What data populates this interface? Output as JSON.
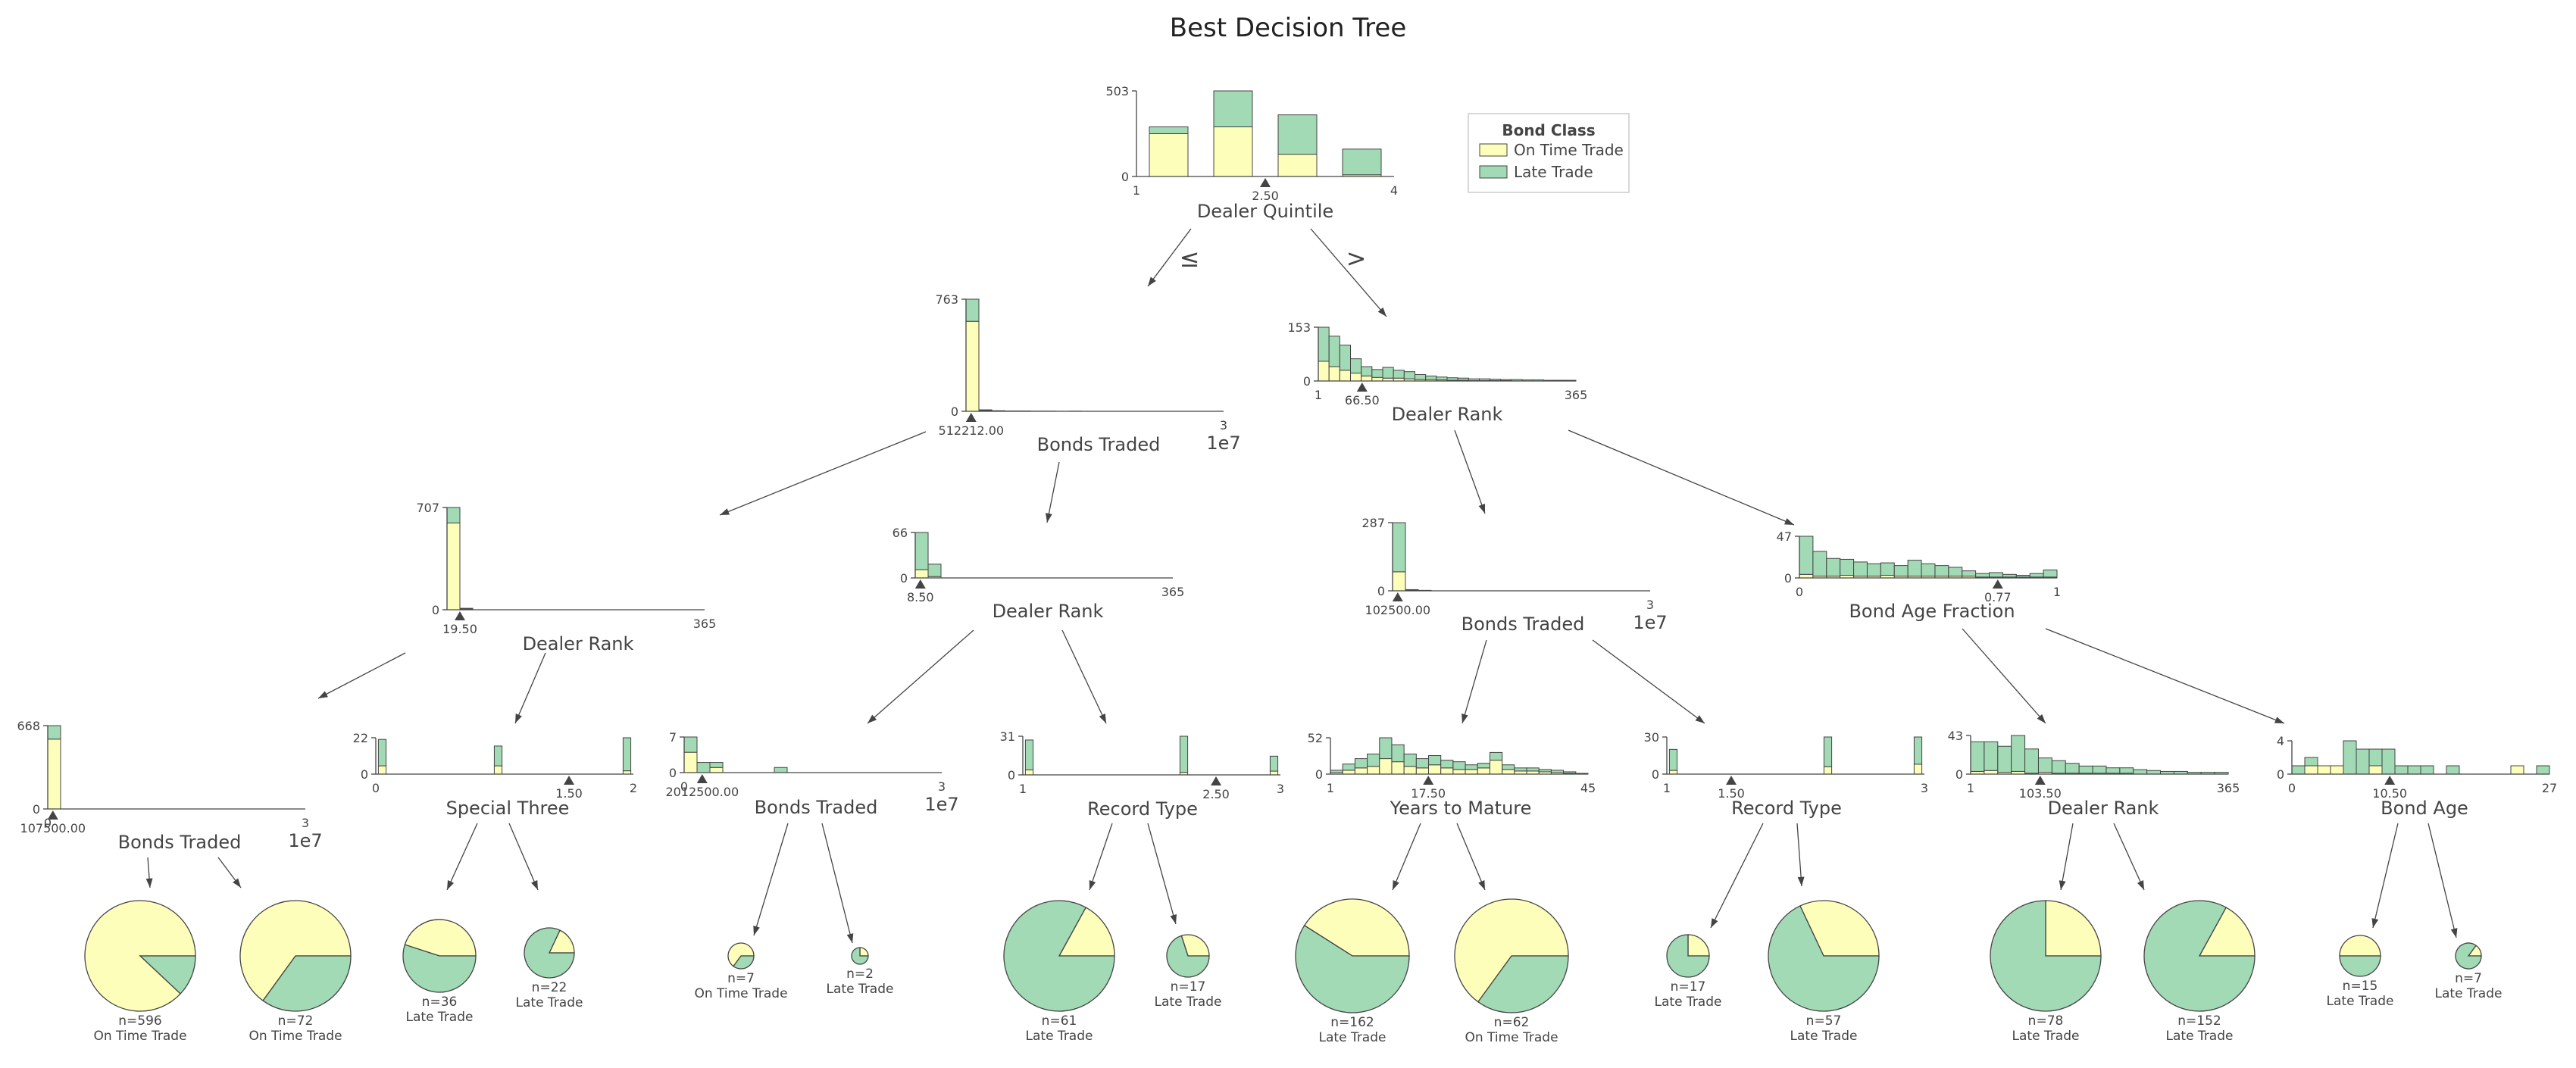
{
  "title": "Best Decision Tree",
  "colors": {
    "class_a": "#fefebb",
    "class_b": "#a1dab4",
    "stroke": "#444444"
  },
  "legend": {
    "title": "Bond Class",
    "items": [
      "On Time Trade",
      "Late Trade"
    ]
  },
  "edge_labels": {
    "left": "≤",
    "right": ">"
  },
  "nodes": [
    {
      "id": "root",
      "feature": "Dealer Quintile",
      "threshold": "2.50",
      "xmin": "1",
      "xmax": "4",
      "ymax": "503",
      "bars": [
        [
          250,
          40
        ],
        [
          290,
          210
        ],
        [
          130,
          230
        ],
        [
          10,
          150
        ]
      ]
    },
    {
      "id": "L",
      "feature": "Bonds Traded",
      "threshold": "512212.00",
      "xmin": "",
      "xmax": "3",
      "exp": "1e7",
      "ymax": "763",
      "bars": [
        [
          610,
          150
        ],
        [
          6,
          4
        ],
        [
          2,
          2
        ],
        [
          1,
          1
        ],
        [
          1,
          1
        ],
        [
          0,
          1
        ],
        [
          0,
          1
        ],
        [
          0,
          0
        ],
        [
          0,
          1
        ],
        [
          0,
          0
        ],
        [
          0,
          0
        ],
        [
          0,
          0
        ],
        [
          0,
          0
        ],
        [
          0,
          0
        ],
        [
          0,
          0
        ],
        [
          0,
          0
        ],
        [
          0,
          0
        ],
        [
          0,
          0
        ],
        [
          0,
          0
        ],
        [
          0,
          0
        ]
      ]
    },
    {
      "id": "R",
      "feature": "Dealer Rank",
      "threshold": "66.50",
      "xmin": "1",
      "xmax": "365",
      "ymax": "153",
      "bars": [
        [
          55,
          95
        ],
        [
          40,
          85
        ],
        [
          30,
          70
        ],
        [
          22,
          40
        ],
        [
          14,
          26
        ],
        [
          10,
          22
        ],
        [
          8,
          30
        ],
        [
          8,
          22
        ],
        [
          6,
          20
        ],
        [
          4,
          14
        ],
        [
          4,
          10
        ],
        [
          3,
          8
        ],
        [
          2,
          7
        ],
        [
          2,
          6
        ],
        [
          1,
          5
        ],
        [
          1,
          5
        ],
        [
          1,
          4
        ],
        [
          1,
          3
        ],
        [
          0,
          4
        ],
        [
          0,
          3
        ],
        [
          0,
          3
        ],
        [
          0,
          2
        ],
        [
          0,
          2
        ],
        [
          0,
          2
        ]
      ]
    },
    {
      "id": "LL",
      "feature": "Dealer Rank",
      "threshold": "19.50",
      "xmin": "",
      "xmax": "365",
      "ymax": "707",
      "bars": [
        [
          600,
          107
        ],
        [
          6,
          4
        ],
        [
          0,
          0
        ],
        [
          0,
          0
        ],
        [
          0,
          0
        ],
        [
          0,
          0
        ],
        [
          0,
          0
        ],
        [
          0,
          0
        ],
        [
          0,
          0
        ],
        [
          0,
          0
        ],
        [
          0,
          0
        ],
        [
          0,
          0
        ],
        [
          0,
          0
        ],
        [
          0,
          0
        ],
        [
          0,
          0
        ],
        [
          0,
          0
        ],
        [
          0,
          0
        ],
        [
          0,
          0
        ],
        [
          0,
          0
        ],
        [
          0,
          0
        ]
      ]
    },
    {
      "id": "LR",
      "feature": "Dealer Rank",
      "threshold": "8.50",
      "xmin": "",
      "xmax": "365",
      "ymax": "66",
      "bars": [
        [
          12,
          54
        ],
        [
          2,
          18
        ],
        [
          0,
          0
        ],
        [
          0,
          0
        ],
        [
          0,
          0
        ],
        [
          0,
          0
        ],
        [
          0,
          0
        ],
        [
          0,
          0
        ],
        [
          0,
          0
        ],
        [
          0,
          0
        ],
        [
          0,
          0
        ],
        [
          0,
          0
        ],
        [
          0,
          0
        ],
        [
          0,
          0
        ],
        [
          0,
          0
        ],
        [
          0,
          0
        ],
        [
          0,
          0
        ],
        [
          0,
          0
        ],
        [
          0,
          0
        ],
        [
          0,
          0
        ]
      ]
    },
    {
      "id": "RL",
      "feature": "Bonds Traded",
      "threshold": "102500.00",
      "xmin": "",
      "xmax": "3",
      "exp": "1e7",
      "ymax": "287",
      "bars": [
        [
          80,
          207
        ],
        [
          2,
          3
        ],
        [
          1,
          1
        ],
        [
          0,
          0
        ],
        [
          0,
          0
        ],
        [
          0,
          0
        ],
        [
          0,
          0
        ],
        [
          0,
          0
        ],
        [
          0,
          0
        ],
        [
          0,
          0
        ],
        [
          0,
          0
        ],
        [
          0,
          0
        ],
        [
          0,
          0
        ],
        [
          0,
          0
        ],
        [
          0,
          0
        ],
        [
          0,
          0
        ],
        [
          0,
          0
        ],
        [
          0,
          0
        ],
        [
          0,
          0
        ],
        [
          0,
          0
        ]
      ]
    },
    {
      "id": "RR",
      "feature": "Bond Age Fraction",
      "threshold": "0.77",
      "xmin": "0",
      "xmax": "1",
      "ymax": "47",
      "bars": [
        [
          4,
          43
        ],
        [
          2,
          28
        ],
        [
          2,
          20
        ],
        [
          3,
          18
        ],
        [
          2,
          16
        ],
        [
          2,
          14
        ],
        [
          3,
          14
        ],
        [
          2,
          12
        ],
        [
          2,
          18
        ],
        [
          2,
          14
        ],
        [
          2,
          12
        ],
        [
          2,
          10
        ],
        [
          2,
          6
        ],
        [
          1,
          4
        ],
        [
          1,
          5
        ],
        [
          1,
          3
        ],
        [
          1,
          2
        ],
        [
          1,
          4
        ],
        [
          1,
          8
        ]
      ]
    },
    {
      "id": "LLL",
      "feature": "Bonds Traded",
      "threshold": "107500.00",
      "xmin": "0",
      "xmax": "3",
      "exp": "1e7",
      "ymax": "668",
      "bars": [
        [
          560,
          108
        ],
        [
          0,
          0
        ],
        [
          0,
          0
        ],
        [
          0,
          0
        ],
        [
          0,
          0
        ],
        [
          0,
          0
        ],
        [
          0,
          0
        ],
        [
          0,
          0
        ],
        [
          0,
          0
        ],
        [
          0,
          0
        ],
        [
          0,
          0
        ],
        [
          0,
          0
        ],
        [
          0,
          0
        ],
        [
          0,
          0
        ],
        [
          0,
          0
        ],
        [
          0,
          0
        ],
        [
          0,
          0
        ],
        [
          0,
          0
        ],
        [
          0,
          0
        ],
        [
          0,
          0
        ]
      ]
    },
    {
      "id": "LLR",
      "feature": "Special Three",
      "threshold": "1.50",
      "xmin": "0",
      "xmax": "2",
      "ymax": "22",
      "bars": [
        [
          5,
          16
        ],
        [
          0,
          0
        ],
        [
          0,
          0
        ],
        [
          0,
          0
        ],
        [
          0,
          0
        ],
        [
          0,
          0
        ],
        [
          0,
          0
        ],
        [
          0,
          0
        ],
        [
          0,
          0
        ],
        [
          5,
          12
        ],
        [
          0,
          0
        ],
        [
          0,
          0
        ],
        [
          0,
          0
        ],
        [
          0,
          0
        ],
        [
          0,
          0
        ],
        [
          0,
          0
        ],
        [
          0,
          0
        ],
        [
          0,
          0
        ],
        [
          0,
          0
        ],
        [
          2,
          20
        ]
      ]
    },
    {
      "id": "LRL",
      "feature": "Bonds Traded",
      "threshold": "2012500.00",
      "xmin": "0",
      "xmax": "3",
      "exp": "1e7",
      "ymax": "7",
      "bars": [
        [
          4,
          3
        ],
        [
          0,
          2
        ],
        [
          1,
          1
        ],
        [
          0,
          0
        ],
        [
          0,
          0
        ],
        [
          0,
          0
        ],
        [
          0,
          0
        ],
        [
          0,
          1
        ],
        [
          0,
          0
        ],
        [
          0,
          0
        ],
        [
          0,
          0
        ],
        [
          0,
          0
        ],
        [
          0,
          0
        ],
        [
          0,
          0
        ],
        [
          0,
          0
        ],
        [
          0,
          0
        ],
        [
          0,
          0
        ],
        [
          0,
          0
        ],
        [
          0,
          0
        ],
        [
          0,
          0
        ]
      ]
    },
    {
      "id": "LRR",
      "feature": "Record Type",
      "threshold": "2.50",
      "xmin": "1",
      "xmax": "3",
      "ymax": "31",
      "bars": [
        [
          4,
          24
        ],
        [
          0,
          0
        ],
        [
          0,
          0
        ],
        [
          0,
          0
        ],
        [
          0,
          0
        ],
        [
          0,
          0
        ],
        [
          0,
          0
        ],
        [
          0,
          0
        ],
        [
          0,
          0
        ],
        [
          0,
          0
        ],
        [
          0,
          0
        ],
        [
          0,
          0
        ],
        [
          2,
          29
        ],
        [
          0,
          0
        ],
        [
          0,
          0
        ],
        [
          0,
          0
        ],
        [
          0,
          0
        ],
        [
          0,
          0
        ],
        [
          0,
          0
        ],
        [
          3,
          12
        ]
      ]
    },
    {
      "id": "RLL",
      "feature": "Years to Mature",
      "threshold": "17.50",
      "xmin": "1",
      "xmax": "45",
      "ymax": "52",
      "bars": [
        [
          2,
          3
        ],
        [
          5,
          8
        ],
        [
          8,
          12
        ],
        [
          10,
          16
        ],
        [
          20,
          27
        ],
        [
          16,
          22
        ],
        [
          10,
          16
        ],
        [
          8,
          12
        ],
        [
          12,
          12
        ],
        [
          8,
          10
        ],
        [
          6,
          10
        ],
        [
          6,
          6
        ],
        [
          8,
          6
        ],
        [
          18,
          10
        ],
        [
          6,
          6
        ],
        [
          4,
          4
        ],
        [
          4,
          4
        ],
        [
          3,
          3
        ],
        [
          2,
          3
        ],
        [
          1,
          2
        ],
        [
          0,
          1
        ]
      ]
    },
    {
      "id": "RLR",
      "feature": "Record Type",
      "threshold": "1.50",
      "xmin": "1",
      "xmax": "3",
      "ymax": "30",
      "bars": [
        [
          3,
          17
        ],
        [
          0,
          0
        ],
        [
          0,
          0
        ],
        [
          0,
          0
        ],
        [
          0,
          0
        ],
        [
          0,
          0
        ],
        [
          0,
          0
        ],
        [
          0,
          0
        ],
        [
          0,
          0
        ],
        [
          0,
          0
        ],
        [
          0,
          0
        ],
        [
          0,
          0
        ],
        [
          6,
          24
        ],
        [
          0,
          0
        ],
        [
          0,
          0
        ],
        [
          0,
          0
        ],
        [
          0,
          0
        ],
        [
          0,
          0
        ],
        [
          0,
          0
        ],
        [
          8,
          22
        ]
      ]
    },
    {
      "id": "RRL",
      "feature": "Dealer Rank",
      "threshold": "103.50",
      "xmin": "1",
      "xmax": "365",
      "ymax": "43",
      "bars": [
        [
          3,
          33
        ],
        [
          4,
          32
        ],
        [
          2,
          29
        ],
        [
          3,
          40
        ],
        [
          1,
          27
        ],
        [
          2,
          16
        ],
        [
          1,
          14
        ],
        [
          1,
          11
        ],
        [
          1,
          8
        ],
        [
          1,
          8
        ],
        [
          1,
          6
        ],
        [
          1,
          6
        ],
        [
          0,
          5
        ],
        [
          0,
          4
        ],
        [
          0,
          3
        ],
        [
          0,
          3
        ],
        [
          0,
          2
        ],
        [
          0,
          2
        ],
        [
          0,
          2
        ]
      ]
    },
    {
      "id": "RRR",
      "feature": "Bond Age",
      "threshold": "10.50",
      "xmin": "0",
      "xmax": "27",
      "ymax": "4",
      "bars": [
        [
          0,
          1
        ],
        [
          1,
          1
        ],
        [
          1,
          0
        ],
        [
          1,
          0
        ],
        [
          0,
          4
        ],
        [
          0,
          3
        ],
        [
          1,
          2
        ],
        [
          0,
          3
        ],
        [
          0,
          1
        ],
        [
          0,
          1
        ],
        [
          0,
          1
        ],
        [
          0,
          0
        ],
        [
          0,
          1
        ],
        [
          0,
          0
        ],
        [
          0,
          0
        ],
        [
          0,
          0
        ],
        [
          0,
          0
        ],
        [
          1,
          0
        ],
        [
          0,
          0
        ],
        [
          0,
          1
        ]
      ]
    }
  ],
  "leaves": [
    {
      "n": "n=596",
      "label": "On Time Trade",
      "frac_a": 0.88
    },
    {
      "n": "n=72",
      "label": "On Time Trade",
      "frac_a": 0.65
    },
    {
      "n": "n=36",
      "label": "Late Trade",
      "frac_a": 0.45
    },
    {
      "n": "n=22",
      "label": "Late Trade",
      "frac_a": 0.18
    },
    {
      "n": "n=7",
      "label": "On Time Trade",
      "frac_a": 0.65
    },
    {
      "n": "n=2",
      "label": "Late Trade",
      "frac_a": 0.25
    },
    {
      "n": "n=61",
      "label": "Late Trade",
      "frac_a": 0.17
    },
    {
      "n": "n=17",
      "label": "Late Trade",
      "frac_a": 0.3
    },
    {
      "n": "n=162",
      "label": "Late Trade",
      "frac_a": 0.41
    },
    {
      "n": "n=62",
      "label": "On Time Trade",
      "frac_a": 0.65
    },
    {
      "n": "n=17",
      "label": "Late Trade",
      "frac_a": 0.25
    },
    {
      "n": "n=57",
      "label": "Late Trade",
      "frac_a": 0.32
    },
    {
      "n": "n=78",
      "label": "Late Trade",
      "frac_a": 0.25
    },
    {
      "n": "n=152",
      "label": "Late Trade",
      "frac_a": 0.17
    },
    {
      "n": "n=15",
      "label": "Late Trade",
      "frac_a": 0.5
    },
    {
      "n": "n=7",
      "label": "Late Trade",
      "frac_a": 0.15
    }
  ]
}
